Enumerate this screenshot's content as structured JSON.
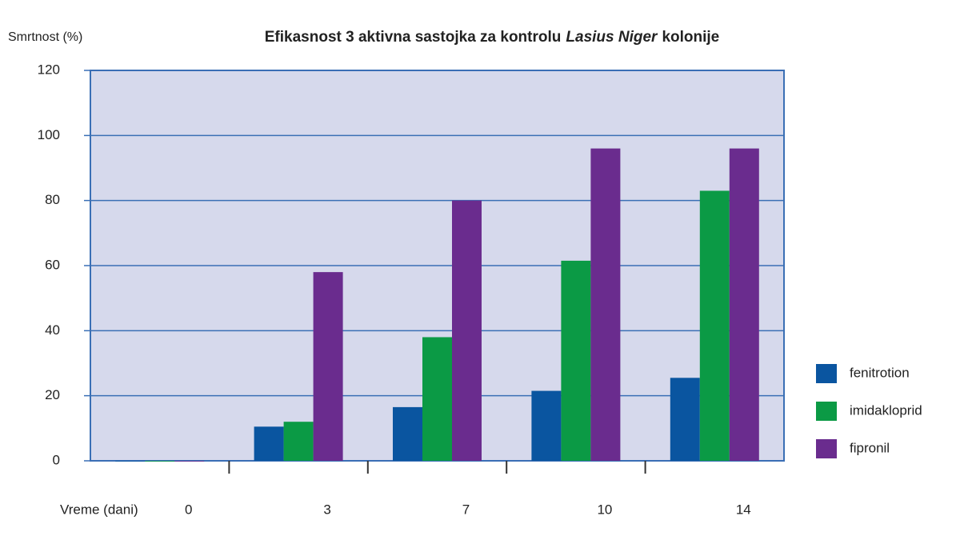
{
  "chart_data": {
    "type": "bar",
    "title": [
      "Efikasnost 3 aktivna sastojka za kontrolu",
      "Lasius Niger",
      "kolonije"
    ],
    "y_label": "Smrtnost (%)",
    "x_label": "Vreme (dani)",
    "categories": [
      "0",
      "3",
      "7",
      "10",
      "14"
    ],
    "series": [
      {
        "name": "fenitrotion",
        "color": "#0a55a0",
        "values": [
          0,
          10.5,
          16.5,
          21.5,
          25.5
        ]
      },
      {
        "name": "imidakloprid",
        "color": "#0b9a45",
        "values": [
          0,
          12,
          38,
          61.5,
          83
        ]
      },
      {
        "name": "fipronil",
        "color": "#6a2c8e",
        "values": [
          0,
          58,
          80,
          96,
          96
        ]
      }
    ],
    "ylim": [
      0,
      120
    ],
    "yticks": [
      0,
      20,
      40,
      60,
      80,
      100,
      120
    ],
    "grid": true,
    "legend": "right"
  }
}
